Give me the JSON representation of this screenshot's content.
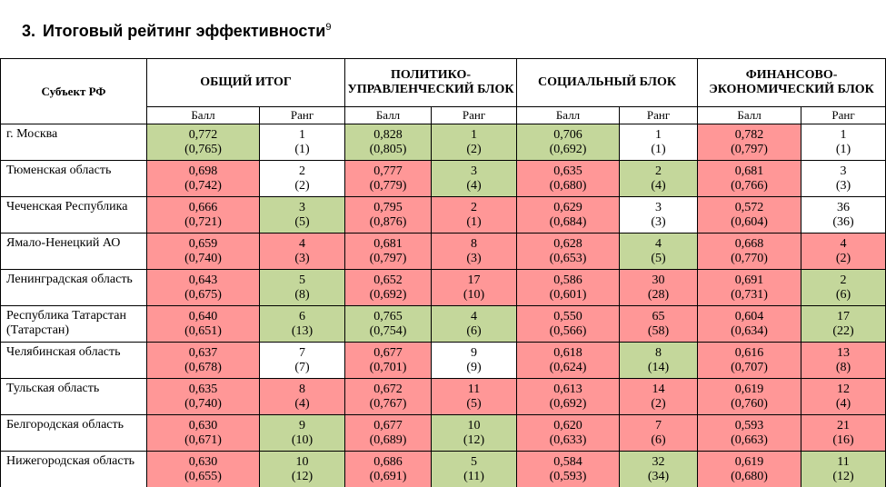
{
  "title": {
    "number": "3.",
    "text": "Итоговый рейтинг эффективности",
    "footnote": "9"
  },
  "table": {
    "subject_header": "Субъект РФ",
    "groups": [
      "ОБЩИЙ ИТОГ",
      "ПОЛИТИКО-УПРАВЛЕНЧЕСКИЙ БЛОК",
      "СОЦИАЛЬНЫЙ БЛОК",
      "ФИНАНСОВО-ЭКОНОМИЧЕСКИЙ БЛОК"
    ],
    "sub_headers": [
      "Балл",
      "Ранг",
      "Балл",
      "Ранг",
      "Балл",
      "Ранг",
      "Балл",
      "Ранг"
    ],
    "colors": {
      "green": "#c4d79b",
      "red": "#ff9797",
      "white": "#ffffff"
    },
    "rows": [
      {
        "name": "г. Москва",
        "cells": [
          {
            "v": "0,772",
            "p": "(0,765)",
            "c": "g"
          },
          {
            "v": "1",
            "p": "(1)",
            "c": "w"
          },
          {
            "v": "0,828",
            "p": "(0,805)",
            "c": "g"
          },
          {
            "v": "1",
            "p": "(2)",
            "c": "g"
          },
          {
            "v": "0,706",
            "p": "(0,692)",
            "c": "g"
          },
          {
            "v": "1",
            "p": "(1)",
            "c": "w"
          },
          {
            "v": "0,782",
            "p": "(0,797)",
            "c": "r"
          },
          {
            "v": "1",
            "p": "(1)",
            "c": "w"
          }
        ]
      },
      {
        "name": "Тюменская область",
        "cells": [
          {
            "v": "0,698",
            "p": "(0,742)",
            "c": "r"
          },
          {
            "v": "2",
            "p": "(2)",
            "c": "w"
          },
          {
            "v": "0,777",
            "p": "(0,779)",
            "c": "r"
          },
          {
            "v": "3",
            "p": "(4)",
            "c": "g"
          },
          {
            "v": "0,635",
            "p": "(0,680)",
            "c": "r"
          },
          {
            "v": "2",
            "p": "(4)",
            "c": "g"
          },
          {
            "v": "0,681",
            "p": "(0,766)",
            "c": "r"
          },
          {
            "v": "3",
            "p": "(3)",
            "c": "w"
          }
        ]
      },
      {
        "name": "Чеченская Республика",
        "cells": [
          {
            "v": "0,666",
            "p": "(0,721)",
            "c": "r"
          },
          {
            "v": "3",
            "p": "(5)",
            "c": "g"
          },
          {
            "v": "0,795",
            "p": "(0,876)",
            "c": "r"
          },
          {
            "v": "2",
            "p": "(1)",
            "c": "r"
          },
          {
            "v": "0,629",
            "p": "(0,684)",
            "c": "r"
          },
          {
            "v": "3",
            "p": "(3)",
            "c": "w"
          },
          {
            "v": "0,572",
            "p": "(0,604)",
            "c": "r"
          },
          {
            "v": "36",
            "p": "(36)",
            "c": "w"
          }
        ]
      },
      {
        "name": "Ямало-Ненецкий АО",
        "cells": [
          {
            "v": "0,659",
            "p": "(0,740)",
            "c": "r"
          },
          {
            "v": "4",
            "p": "(3)",
            "c": "r"
          },
          {
            "v": "0,681",
            "p": "(0,797)",
            "c": "r"
          },
          {
            "v": "8",
            "p": "(3)",
            "c": "r"
          },
          {
            "v": "0,628",
            "p": "(0,653)",
            "c": "r"
          },
          {
            "v": "4",
            "p": "(5)",
            "c": "g"
          },
          {
            "v": "0,668",
            "p": "(0,770)",
            "c": "r"
          },
          {
            "v": "4",
            "p": "(2)",
            "c": "r"
          }
        ]
      },
      {
        "name": "Ленинградская область",
        "cells": [
          {
            "v": "0,643",
            "p": "(0,675)",
            "c": "r"
          },
          {
            "v": "5",
            "p": "(8)",
            "c": "g"
          },
          {
            "v": "0,652",
            "p": "(0,692)",
            "c": "r"
          },
          {
            "v": "17",
            "p": "(10)",
            "c": "r"
          },
          {
            "v": "0,586",
            "p": "(0,601)",
            "c": "r"
          },
          {
            "v": "30",
            "p": "(28)",
            "c": "r"
          },
          {
            "v": "0,691",
            "p": "(0,731)",
            "c": "r"
          },
          {
            "v": "2",
            "p": "(6)",
            "c": "g"
          }
        ]
      },
      {
        "name": "Республика Татарстан (Татарстан)",
        "cells": [
          {
            "v": "0,640",
            "p": "(0,651)",
            "c": "r"
          },
          {
            "v": "6",
            "p": "(13)",
            "c": "g"
          },
          {
            "v": "0,765",
            "p": "(0,754)",
            "c": "g"
          },
          {
            "v": "4",
            "p": "(6)",
            "c": "g"
          },
          {
            "v": "0,550",
            "p": "(0,566)",
            "c": "r"
          },
          {
            "v": "65",
            "p": "(58)",
            "c": "r"
          },
          {
            "v": "0,604",
            "p": "(0,634)",
            "c": "r"
          },
          {
            "v": "17",
            "p": "(22)",
            "c": "g"
          }
        ]
      },
      {
        "name": "Челябинская область",
        "cells": [
          {
            "v": "0,637",
            "p": "(0,678)",
            "c": "r"
          },
          {
            "v": "7",
            "p": "(7)",
            "c": "w"
          },
          {
            "v": "0,677",
            "p": "(0,701)",
            "c": "r"
          },
          {
            "v": "9",
            "p": "(9)",
            "c": "w"
          },
          {
            "v": "0,618",
            "p": "(0,624)",
            "c": "r"
          },
          {
            "v": "8",
            "p": "(14)",
            "c": "g"
          },
          {
            "v": "0,616",
            "p": "(0,707)",
            "c": "r"
          },
          {
            "v": "13",
            "p": "(8)",
            "c": "r"
          }
        ]
      },
      {
        "name": "Тульская область",
        "cells": [
          {
            "v": "0,635",
            "p": "(0,740)",
            "c": "r"
          },
          {
            "v": "8",
            "p": "(4)",
            "c": "r"
          },
          {
            "v": "0,672",
            "p": "(0,767)",
            "c": "r"
          },
          {
            "v": "11",
            "p": "(5)",
            "c": "r"
          },
          {
            "v": "0,613",
            "p": "(0,692)",
            "c": "r"
          },
          {
            "v": "14",
            "p": "(2)",
            "c": "r"
          },
          {
            "v": "0,619",
            "p": "(0,760)",
            "c": "r"
          },
          {
            "v": "12",
            "p": "(4)",
            "c": "r"
          }
        ]
      },
      {
        "name": "Белгородская область",
        "cells": [
          {
            "v": "0,630",
            "p": "(0,671)",
            "c": "r"
          },
          {
            "v": "9",
            "p": "(10)",
            "c": "g"
          },
          {
            "v": "0,677",
            "p": "(0,689)",
            "c": "r"
          },
          {
            "v": "10",
            "p": "(12)",
            "c": "g"
          },
          {
            "v": "0,620",
            "p": "(0,633)",
            "c": "r"
          },
          {
            "v": "7",
            "p": "(6)",
            "c": "r"
          },
          {
            "v": "0,593",
            "p": "(0,663)",
            "c": "r"
          },
          {
            "v": "21",
            "p": "(16)",
            "c": "r"
          }
        ]
      },
      {
        "name": "Нижегородская область",
        "cells": [
          {
            "v": "0,630",
            "p": "(0,655)",
            "c": "r"
          },
          {
            "v": "10",
            "p": "(12)",
            "c": "g"
          },
          {
            "v": "0,686",
            "p": "(0,691)",
            "c": "r"
          },
          {
            "v": "5",
            "p": "(11)",
            "c": "g"
          },
          {
            "v": "0,584",
            "p": "(0,593)",
            "c": "r"
          },
          {
            "v": "32",
            "p": "(34)",
            "c": "g"
          },
          {
            "v": "0,619",
            "p": "(0,680)",
            "c": "r"
          },
          {
            "v": "11",
            "p": "(12)",
            "c": "g"
          }
        ]
      }
    ]
  }
}
